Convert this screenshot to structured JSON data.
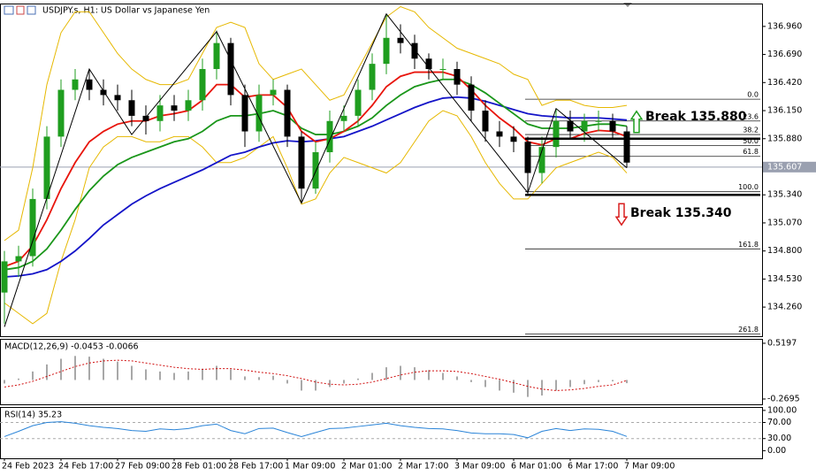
{
  "chart_data": [
    {
      "type": "candlestick",
      "title": "USDJPY.s, H1:  US Dollar vs Japanese Yen",
      "categories": [
        "24 Feb 2023",
        null,
        null,
        null,
        "24 Feb 17:00",
        null,
        null,
        null,
        "27 Feb 09:00",
        null,
        null,
        null,
        "28 Feb 01:00",
        null,
        null,
        null,
        "28 Feb 17:00",
        null,
        null,
        null,
        "1 Mar 09:00",
        null,
        null,
        null,
        "2 Mar 01:00",
        null,
        null,
        null,
        "2 Mar 17:00",
        null,
        null,
        null,
        "3 Mar 09:00",
        null,
        null,
        null,
        "6 Mar 01:00",
        null,
        null,
        null,
        "6 Mar 17:00",
        null,
        null,
        null,
        "7 Mar 09:00"
      ],
      "open": [
        134.4,
        134.7,
        134.75,
        135.3,
        135.9,
        136.35,
        136.45,
        136.35,
        136.3,
        136.25,
        136.1,
        136.05,
        136.2,
        136.15,
        136.25,
        136.55,
        136.8,
        136.3,
        135.95,
        136.3,
        136.35,
        135.9,
        135.4,
        135.75,
        136.05,
        136.1,
        136.35,
        136.6,
        136.85,
        136.8,
        136.65,
        136.55,
        136.55,
        136.4,
        136.15,
        135.95,
        135.9,
        135.85,
        135.55,
        135.8,
        136.05,
        135.95,
        136.05,
        136.05,
        135.95
      ],
      "high": [
        134.8,
        134.85,
        135.4,
        136.0,
        136.45,
        136.55,
        136.55,
        136.45,
        136.4,
        136.35,
        136.2,
        136.3,
        136.3,
        136.35,
        136.65,
        136.92,
        136.85,
        136.4,
        136.4,
        136.45,
        136.4,
        135.95,
        135.85,
        136.15,
        136.2,
        136.45,
        136.7,
        137.08,
        136.98,
        136.88,
        136.7,
        136.65,
        136.62,
        136.48,
        136.25,
        136.05,
        136.0,
        135.9,
        135.9,
        136.17,
        136.15,
        136.12,
        136.15,
        136.12,
        136.0
      ],
      "low": [
        134.1,
        134.55,
        134.65,
        135.2,
        135.8,
        136.25,
        136.25,
        136.2,
        136.15,
        136.0,
        135.92,
        135.95,
        136.05,
        136.05,
        136.15,
        136.45,
        136.2,
        135.8,
        135.85,
        136.2,
        135.8,
        135.26,
        135.35,
        135.65,
        135.95,
        136.0,
        136.25,
        136.5,
        136.7,
        136.55,
        136.45,
        136.45,
        136.3,
        136.05,
        135.85,
        135.8,
        135.75,
        135.34,
        135.45,
        135.7,
        135.88,
        135.85,
        135.95,
        135.88,
        135.6
      ],
      "close": [
        134.7,
        134.75,
        135.3,
        135.9,
        136.35,
        136.45,
        136.35,
        136.3,
        136.25,
        136.1,
        136.05,
        136.2,
        136.15,
        136.25,
        136.55,
        136.8,
        136.3,
        135.95,
        136.3,
        136.35,
        135.9,
        135.4,
        135.75,
        136.05,
        136.1,
        136.35,
        136.6,
        136.85,
        136.8,
        136.65,
        136.55,
        136.55,
        136.4,
        136.15,
        135.95,
        135.9,
        135.85,
        135.55,
        135.8,
        136.05,
        135.95,
        136.05,
        136.05,
        135.95,
        135.65
      ],
      "up_color": "#1f9e1f",
      "down_color": "#000000",
      "series": [
        {
          "color": "#e6b800",
          "values": [
            134.9,
            135.0,
            135.6,
            136.4,
            136.9,
            137.1,
            137.1,
            136.9,
            136.7,
            136.55,
            136.45,
            136.4,
            136.4,
            136.45,
            136.7,
            136.95,
            137.0,
            136.95,
            136.6,
            136.45,
            136.5,
            136.55,
            136.4,
            136.25,
            136.3,
            136.55,
            136.8,
            137.05,
            137.15,
            137.1,
            136.95,
            136.85,
            136.75,
            136.7,
            136.65,
            136.6,
            136.5,
            136.45,
            136.2,
            136.25,
            136.25,
            136.2,
            136.18,
            136.18,
            136.2
          ]
        },
        {
          "color": "#e6b800",
          "values": [
            134.3,
            134.2,
            134.1,
            134.2,
            134.7,
            135.1,
            135.6,
            135.8,
            135.9,
            135.9,
            135.85,
            135.85,
            135.9,
            135.9,
            135.8,
            135.65,
            135.65,
            135.7,
            135.8,
            135.9,
            135.6,
            135.25,
            135.3,
            135.55,
            135.7,
            135.65,
            135.6,
            135.55,
            135.65,
            135.85,
            136.05,
            136.15,
            136.1,
            135.9,
            135.65,
            135.45,
            135.3,
            135.3,
            135.45,
            135.6,
            135.65,
            135.7,
            135.75,
            135.7,
            135.55
          ]
        },
        {
          "color": "#1414c8",
          "values": [
            134.55,
            134.56,
            134.58,
            134.62,
            134.7,
            134.8,
            134.92,
            135.05,
            135.15,
            135.25,
            135.33,
            135.4,
            135.46,
            135.52,
            135.58,
            135.65,
            135.72,
            135.75,
            135.8,
            135.84,
            135.86,
            135.85,
            135.86,
            135.88,
            135.9,
            135.95,
            136.0,
            136.06,
            136.12,
            136.18,
            136.23,
            136.27,
            136.28,
            136.27,
            136.24,
            136.2,
            136.16,
            136.12,
            136.1,
            136.09,
            136.08,
            136.08,
            136.08,
            136.07,
            136.06
          ]
        },
        {
          "color": "#1a961a",
          "values": [
            134.62,
            134.64,
            134.7,
            134.82,
            135.0,
            135.2,
            135.38,
            135.52,
            135.63,
            135.7,
            135.75,
            135.8,
            135.85,
            135.88,
            135.95,
            136.05,
            136.1,
            136.1,
            136.12,
            136.15,
            136.1,
            135.98,
            135.92,
            135.92,
            135.95,
            136.0,
            136.08,
            136.2,
            136.3,
            136.38,
            136.42,
            136.45,
            136.45,
            136.4,
            136.32,
            136.22,
            136.12,
            136.02,
            135.98,
            135.98,
            135.98,
            136.0,
            136.02,
            136.02,
            136.0
          ]
        },
        {
          "color": "#e8150c",
          "values": [
            134.65,
            134.7,
            134.85,
            135.1,
            135.4,
            135.65,
            135.85,
            135.95,
            136.02,
            136.05,
            136.05,
            136.1,
            136.12,
            136.15,
            136.25,
            136.4,
            136.4,
            136.28,
            136.3,
            136.3,
            136.18,
            135.95,
            135.85,
            135.88,
            135.95,
            136.05,
            136.2,
            136.38,
            136.48,
            136.52,
            136.52,
            136.52,
            136.48,
            136.35,
            136.2,
            136.08,
            135.98,
            135.85,
            135.82,
            135.88,
            135.88,
            135.93,
            135.96,
            135.95,
            135.9
          ]
        }
      ],
      "ylim": [
        133.98,
        137.18
      ],
      "yticks": [
        {
          "value": 136.96,
          "label": "136.960"
        },
        {
          "value": 136.69,
          "label": "136.690"
        },
        {
          "value": 136.42,
          "label": "136.420"
        },
        {
          "value": 136.15,
          "label": "136.150"
        },
        {
          "value": 135.88,
          "label": "135.880"
        },
        {
          "value": 135.34,
          "label": "135.340"
        },
        {
          "value": 135.07,
          "label": "135.070"
        },
        {
          "value": 134.8,
          "label": "134.800"
        },
        {
          "value": 134.53,
          "label": "134.530"
        },
        {
          "value": 134.26,
          "label": "134.260"
        }
      ],
      "current_price": 135.607,
      "zigzag": {
        "index": [
          0,
          6,
          9,
          15,
          21,
          27,
          37,
          39,
          44
        ],
        "values": [
          134.07,
          136.55,
          135.92,
          136.91,
          135.26,
          137.08,
          135.36,
          136.17,
          135.6
        ]
      },
      "fib": {
        "start_index": 37,
        "ratios": [
          "0.0",
          "23.6",
          "38.2",
          "50.0",
          "61.8",
          "100.0",
          "161.8",
          "261.8"
        ],
        "prices": [
          136.26,
          136.05,
          135.92,
          135.815,
          135.71,
          135.37,
          134.82,
          134.0
        ]
      },
      "breaks": [
        {
          "label": "Break 135.880",
          "price": 135.88,
          "direction": "up",
          "color": "#1f9e1f"
        },
        {
          "label": "Break 135.340",
          "price": 135.34,
          "direction": "down",
          "color": "#d81e1e"
        }
      ]
    },
    {
      "type": "macd",
      "title": "MACD(12,26,9) -0.0453 -0.0066",
      "series": [
        {
          "style": "bar",
          "color": "#a8a8a8",
          "values": [
            -0.05,
            0.02,
            0.12,
            0.22,
            0.3,
            0.34,
            0.33,
            0.3,
            0.26,
            0.2,
            0.15,
            0.12,
            0.1,
            0.12,
            0.16,
            0.2,
            0.15,
            0.05,
            0.04,
            0.06,
            -0.05,
            -0.15,
            -0.15,
            -0.1,
            -0.05,
            0.02,
            0.1,
            0.18,
            0.2,
            0.18,
            0.14,
            0.1,
            0.05,
            -0.03,
            -0.1,
            -0.15,
            -0.18,
            -0.24,
            -0.22,
            -0.15,
            -0.1,
            -0.06,
            -0.03,
            -0.02,
            -0.0453
          ]
        },
        {
          "style": "dashed",
          "color": "#d01010",
          "values": [
            -0.1,
            -0.07,
            -0.02,
            0.05,
            0.12,
            0.19,
            0.24,
            0.27,
            0.28,
            0.27,
            0.24,
            0.21,
            0.18,
            0.16,
            0.15,
            0.16,
            0.16,
            0.14,
            0.11,
            0.09,
            0.06,
            0.02,
            -0.03,
            -0.06,
            -0.07,
            -0.06,
            -0.03,
            0.02,
            0.07,
            0.11,
            0.13,
            0.13,
            0.12,
            0.09,
            0.05,
            0.01,
            -0.04,
            -0.09,
            -0.13,
            -0.15,
            -0.14,
            -0.12,
            -0.09,
            -0.07,
            -0.0066
          ]
        }
      ],
      "ylim": [
        -0.345,
        0.582
      ],
      "yticks": [
        0.5197,
        -0.2695
      ]
    },
    {
      "type": "line",
      "title": "RSI(14) 35.23",
      "series": [
        {
          "color": "#2a84d8",
          "values": [
            35,
            48,
            62,
            70,
            72,
            68,
            62,
            58,
            55,
            50,
            48,
            54,
            52,
            55,
            62,
            66,
            50,
            42,
            55,
            56,
            45,
            35,
            45,
            55,
            56,
            60,
            64,
            68,
            62,
            58,
            55,
            54,
            50,
            44,
            42,
            42,
            40,
            32,
            48,
            55,
            50,
            54,
            53,
            48,
            35.23
          ]
        }
      ],
      "ylim": [
        -19,
        108.5
      ],
      "yticks": [
        {
          "value": 100,
          "label": "100.00"
        },
        {
          "value": 70,
          "label": "70.00"
        },
        {
          "value": 30,
          "label": "30.00"
        },
        {
          "value": 0,
          "label": "0.00"
        }
      ],
      "levels": [
        70,
        30
      ]
    }
  ]
}
